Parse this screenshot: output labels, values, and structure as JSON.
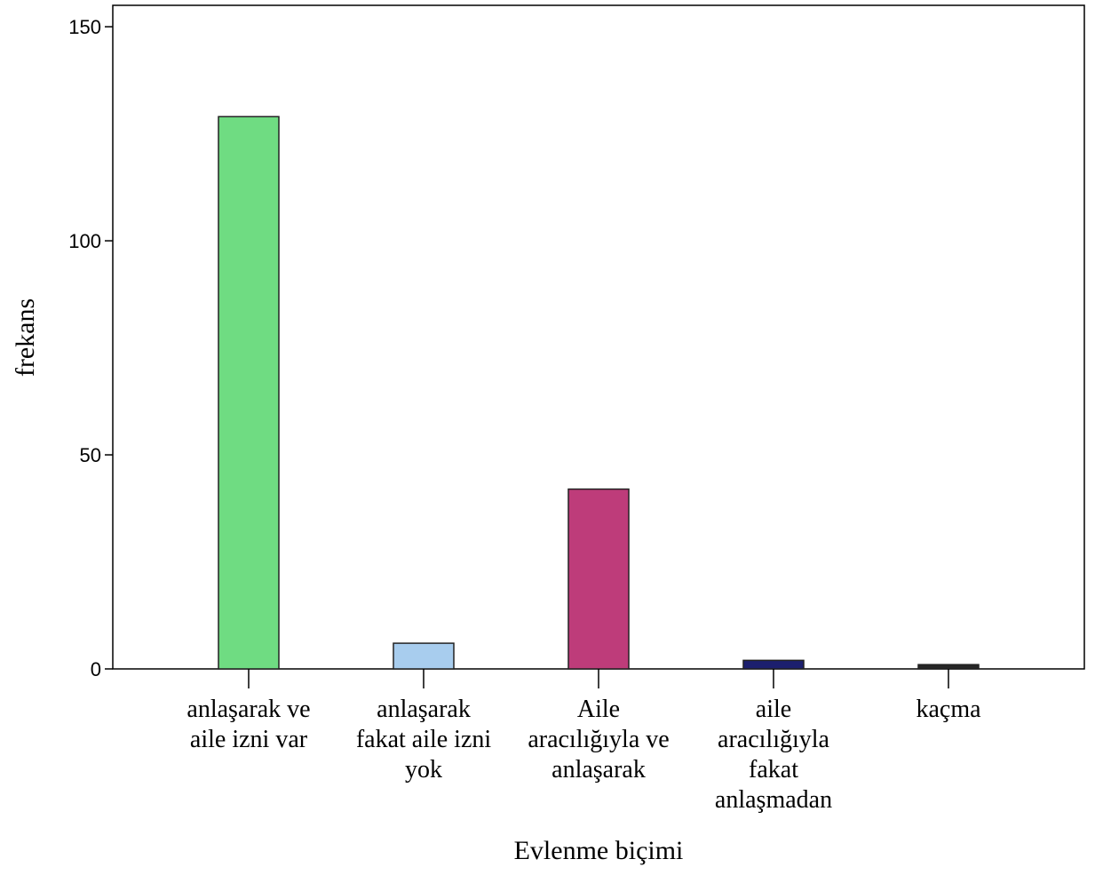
{
  "chart_data": {
    "type": "bar",
    "title": "",
    "xlabel": "Evlenme biçimi",
    "ylabel": "frekans",
    "ylim": [
      0,
      155
    ],
    "yticks": [
      0,
      50,
      100,
      150
    ],
    "grid": false,
    "categories": [
      [
        "anlaşarak ve",
        "aile izni var"
      ],
      [
        "anlaşarak",
        "fakat aile izni",
        "yok"
      ],
      [
        "Aile",
        "aracılığıyla ve",
        "anlaşarak"
      ],
      [
        "aile",
        "aracılığıyla",
        "fakat",
        "anlaşmadan"
      ],
      [
        "kaçma"
      ]
    ],
    "values": [
      129,
      6,
      42,
      2,
      1
    ],
    "colors": [
      "#6fdc82",
      "#a8cdee",
      "#be3c7a",
      "#1c1f6e",
      "#262626"
    ]
  }
}
